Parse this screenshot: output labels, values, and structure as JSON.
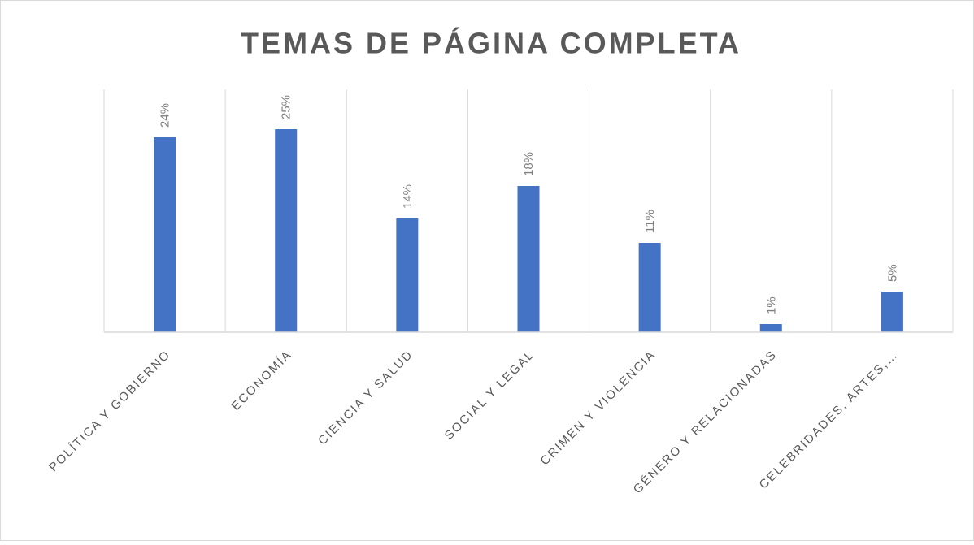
{
  "chart_data": {
    "type": "bar",
    "title": "TEMAS DE PÁGINA COMPLETA",
    "categories": [
      "POLÍTICA Y GOBIERNO",
      "ECONOMÍA",
      "CIENCIA Y SALUD",
      "SOCIAL Y LEGAL",
      "CRIMEN Y VIOLENCIA",
      "GÉNERO Y RELACIONADAS",
      "CELEBRIDADES, ARTES,…"
    ],
    "values": [
      24,
      25,
      14,
      18,
      11,
      1,
      5
    ],
    "value_labels": [
      "24%",
      "25%",
      "14%",
      "18%",
      "11%",
      "1%",
      "5%"
    ],
    "color": "#4472c4"
  }
}
